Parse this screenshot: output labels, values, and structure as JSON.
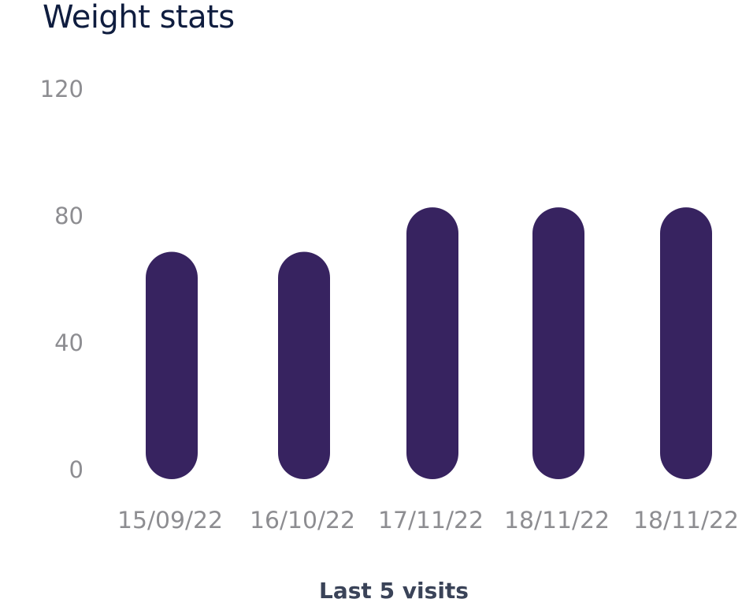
{
  "header": {
    "title": "Weight stats"
  },
  "chart_data": {
    "type": "bar",
    "title": "Weight stats",
    "categories": [
      "15/09/22",
      "16/10/22",
      "17/11/22",
      "18/11/22",
      "18/11/22"
    ],
    "values": [
      62,
      62,
      76,
      76,
      76
    ],
    "xlabel": "Last 5 visits",
    "ylabel": "",
    "ylim": [
      0,
      120
    ],
    "yticks": [
      0,
      40,
      80,
      120
    ],
    "grid": false,
    "bar_color": "#372360",
    "bar_shape": "rounded"
  }
}
